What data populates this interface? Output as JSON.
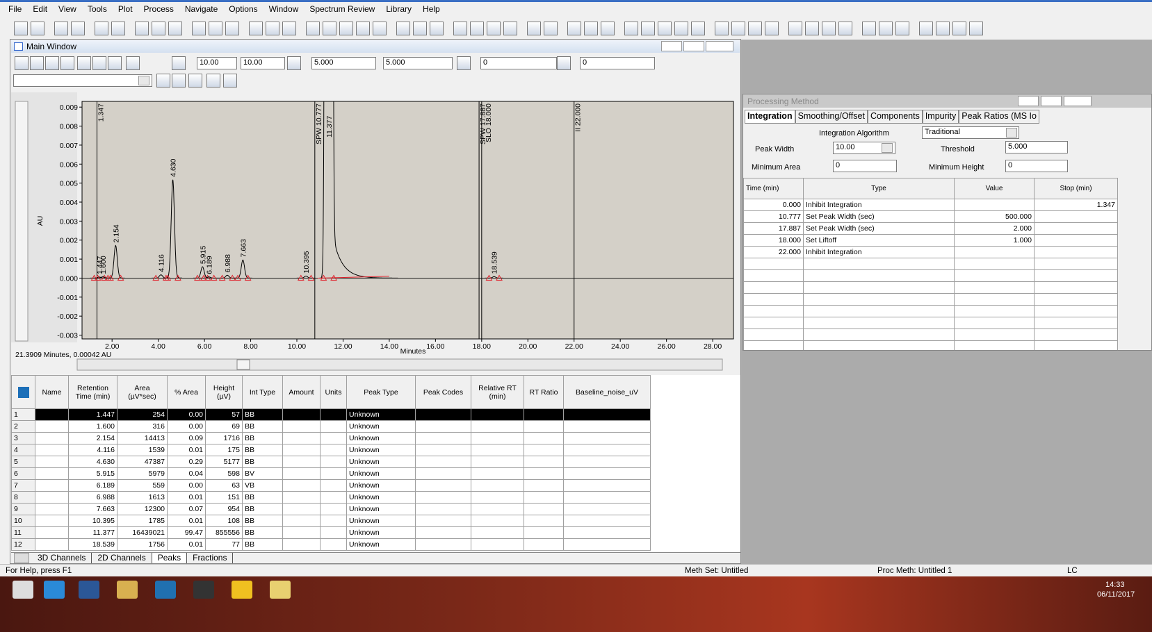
{
  "menu": [
    "File",
    "Edit",
    "View",
    "Tools",
    "Plot",
    "Process",
    "Navigate",
    "Options",
    "Window",
    "Spectrum Review",
    "Library",
    "Help"
  ],
  "main_window": {
    "title": "Main Window",
    "fields": [
      "10.00",
      "10.00",
      "5.000",
      "5.000",
      "0",
      "0"
    ]
  },
  "chromatogram": {
    "y_label": "AU",
    "x_label": "Minutes",
    "cursor_readout": "21.3909 Minutes, 0.00042 AU",
    "xlim": [
      0.7,
      28.9
    ],
    "ylim": [
      -0.0032,
      0.0093
    ],
    "xticks": [
      {
        "value": 2,
        "label": "2.00"
      },
      {
        "value": 4,
        "label": "4.00"
      },
      {
        "value": 6,
        "label": "6.00"
      },
      {
        "value": 8,
        "label": "8.00"
      },
      {
        "value": 10,
        "label": "10.00"
      },
      {
        "value": 12,
        "label": "12.00"
      },
      {
        "value": 14,
        "label": "14.00"
      },
      {
        "value": 16,
        "label": "16.00"
      },
      {
        "value": 18,
        "label": "18.00"
      },
      {
        "value": 20,
        "label": "20.00"
      },
      {
        "value": 22,
        "label": "22.00"
      },
      {
        "value": 24,
        "label": "24.00"
      },
      {
        "value": 26,
        "label": "26.00"
      },
      {
        "value": 28,
        "label": "28.00"
      }
    ],
    "yticks": [
      0.009,
      0.008,
      0.007,
      0.006,
      0.005,
      0.004,
      0.003,
      0.002,
      0.001,
      {
        "value": 0,
        "label": "0.000"
      },
      -0.001,
      -0.002,
      -0.003
    ],
    "events": [
      {
        "x": 1.347,
        "label": "1.347"
      },
      {
        "x": 10.777,
        "label": "SPW 10.777"
      },
      {
        "x": 17.887,
        "label": "SPW 17.887"
      },
      {
        "x": 18.0,
        "label": "SLO 18.000"
      },
      {
        "x": 22.0,
        "label": "II 22.000"
      }
    ]
  },
  "peaks_table": {
    "columns": [
      "Name",
      "Retention Time (min)",
      "Area (µV*sec)",
      "% Area",
      "Height (µV)",
      "Int Type",
      "Amount",
      "Units",
      "Peak Type",
      "Peak Codes",
      "Relative RT (min)",
      "RT Ratio",
      "Baseline_noise_uV"
    ],
    "rows": [
      {
        "n": 1,
        "rt": "1.447",
        "area": "254",
        "pct": "0.00",
        "height": "57",
        "int_type": "BB",
        "peak_type": "Unknown"
      },
      {
        "n": 2,
        "rt": "1.600",
        "area": "316",
        "pct": "0.00",
        "height": "69",
        "int_type": "BB",
        "peak_type": "Unknown"
      },
      {
        "n": 3,
        "rt": "2.154",
        "area": "14413",
        "pct": "0.09",
        "height": "1716",
        "int_type": "BB",
        "peak_type": "Unknown"
      },
      {
        "n": 4,
        "rt": "4.116",
        "area": "1539",
        "pct": "0.01",
        "height": "175",
        "int_type": "BB",
        "peak_type": "Unknown"
      },
      {
        "n": 5,
        "rt": "4.630",
        "area": "47387",
        "pct": "0.29",
        "height": "5177",
        "int_type": "BB",
        "peak_type": "Unknown"
      },
      {
        "n": 6,
        "rt": "5.915",
        "area": "5979",
        "pct": "0.04",
        "height": "598",
        "int_type": "BV",
        "peak_type": "Unknown"
      },
      {
        "n": 7,
        "rt": "6.189",
        "area": "559",
        "pct": "0.00",
        "height": "63",
        "int_type": "VB",
        "peak_type": "Unknown"
      },
      {
        "n": 8,
        "rt": "6.988",
        "area": "1613",
        "pct": "0.01",
        "height": "151",
        "int_type": "BB",
        "peak_type": "Unknown"
      },
      {
        "n": 9,
        "rt": "7.663",
        "area": "12300",
        "pct": "0.07",
        "height": "954",
        "int_type": "BB",
        "peak_type": "Unknown"
      },
      {
        "n": 10,
        "rt": "10.395",
        "area": "1785",
        "pct": "0.01",
        "height": "108",
        "int_type": "BB",
        "peak_type": "Unknown"
      },
      {
        "n": 11,
        "rt": "11.377",
        "area": "16439021",
        "pct": "99.47",
        "height": "855556",
        "int_type": "BB",
        "peak_type": "Unknown"
      },
      {
        "n": 12,
        "rt": "18.539",
        "area": "1756",
        "pct": "0.01",
        "height": "77",
        "int_type": "BB",
        "peak_type": "Unknown"
      }
    ]
  },
  "tabs": [
    "3D Channels",
    "2D Channels",
    "Peaks",
    "Fractions"
  ],
  "processing_method": {
    "title": "Processing Method",
    "tabs": [
      "Integration",
      "Smoothing/Offset",
      "Components",
      "Impurity",
      "Peak Ratios (MS Io"
    ],
    "algorithm_label": "Integration Algorithm",
    "algorithm": "Traditional",
    "peak_width_label": "Peak Width",
    "peak_width": "10.00",
    "threshold_label": "Threshold",
    "threshold": "5.000",
    "min_area_label": "Minimum Area",
    "min_area": "0",
    "min_height_label": "Minimum Height",
    "min_height": "0",
    "columns": [
      "Time (min)",
      "Type",
      "Value",
      "Stop (min)"
    ],
    "events": [
      {
        "time": "0.000",
        "type": "Inhibit Integration",
        "stop": "1.347"
      },
      {
        "time": "10.777",
        "type": "Set Peak Width (sec)",
        "value": "500.000"
      },
      {
        "time": "17.887",
        "type": "Set Peak Width (sec)",
        "value": "2.000"
      },
      {
        "time": "18.000",
        "type": "Set Liftoff",
        "value": "1.000"
      },
      {
        "time": "22.000",
        "type": "Inhibit Integration"
      }
    ]
  },
  "status": {
    "help": "For Help, press F1",
    "meth_set": "Meth Set: Untitled",
    "proc_meth": "Proc Meth: Untitled 1",
    "mode": "LC"
  },
  "taskbar": {
    "time": "14:33",
    "date": "06/11/2017"
  }
}
